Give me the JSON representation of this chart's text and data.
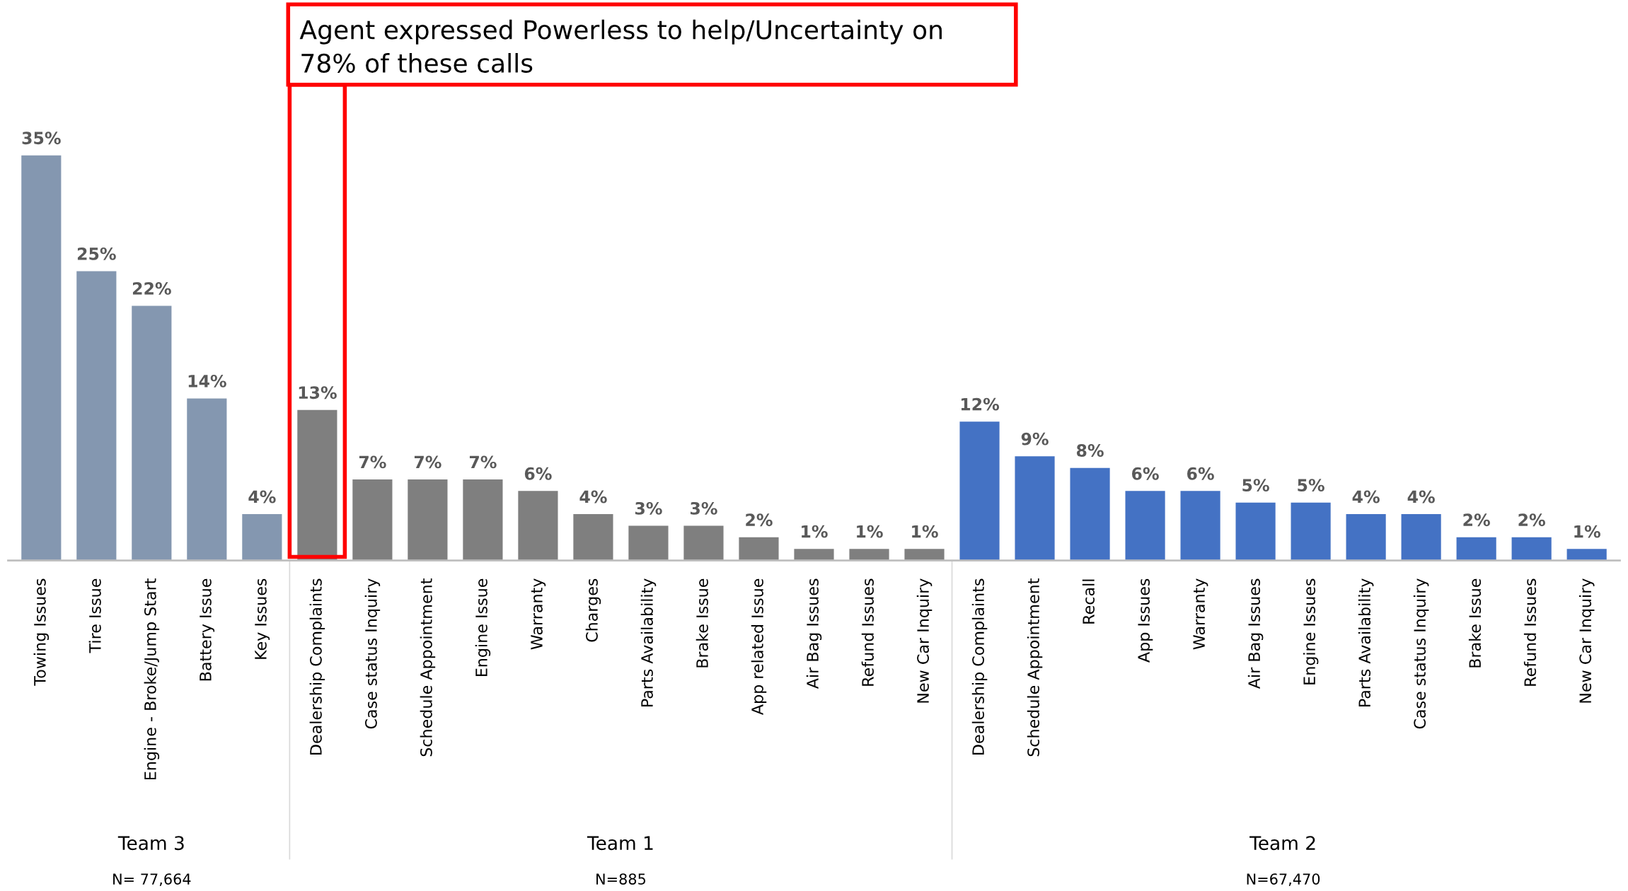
{
  "chart_data": {
    "type": "bar",
    "categories": [
      "Towing Issues",
      "Tire Issue",
      "Engine - Broke/Jump Start",
      "Battery Issue",
      "Key Issues",
      "Dealership Complaints",
      "Case status Inquiry",
      "Schedule Appointment",
      "Engine Issue",
      "Warranty",
      "Charges",
      "Parts Availability",
      "Brake Issue",
      "App related Issue",
      "Air Bag Issues",
      "Refund Issues",
      "New Car Inquiry",
      "Dealership Complaints",
      "Schedule Appointment",
      "Recall",
      "App Issues",
      "Warranty",
      "Air Bag Issues",
      "Engine Issues",
      "Parts Availability",
      "Case status Inquiry",
      "Brake Issue",
      "Refund Issues",
      "New Car Inquiry"
    ],
    "values": [
      35,
      25,
      22,
      14,
      4,
      13,
      7,
      7,
      7,
      6,
      4,
      3,
      3,
      2,
      1,
      1,
      1,
      12,
      9,
      8,
      6,
      6,
      5,
      5,
      4,
      4,
      2,
      2,
      1
    ],
    "colors": [
      "#8497b0",
      "#8497b0",
      "#8497b0",
      "#8497b0",
      "#8497b0",
      "#7f7f7f",
      "#7f7f7f",
      "#7f7f7f",
      "#7f7f7f",
      "#7f7f7f",
      "#7f7f7f",
      "#7f7f7f",
      "#7f7f7f",
      "#7f7f7f",
      "#7f7f7f",
      "#7f7f7f",
      "#7f7f7f",
      "#4472c4",
      "#4472c4",
      "#4472c4",
      "#4472c4",
      "#4472c4",
      "#4472c4",
      "#4472c4",
      "#4472c4",
      "#4472c4",
      "#4472c4",
      "#4472c4",
      "#4472c4"
    ],
    "value_labels": [
      "35%",
      "25%",
      "22%",
      "14%",
      "4%",
      "13%",
      "7%",
      "7%",
      "7%",
      "6%",
      "4%",
      "3%",
      "3%",
      "2%",
      "1%",
      "1%",
      "1%",
      "12%",
      "9%",
      "8%",
      "6%",
      "6%",
      "5%",
      "5%",
      "4%",
      "4%",
      "2%",
      "2%",
      "1%"
    ],
    "annotations": [
      "Agent expressed Powerless to help/Uncertainty on\n78% of these calls",
      "Team 3",
      "Team 1",
      "Team 2",
      "N= 77,664",
      "N=885",
      "N=67,470"
    ],
    "grid": false,
    "legend": false
  }
}
